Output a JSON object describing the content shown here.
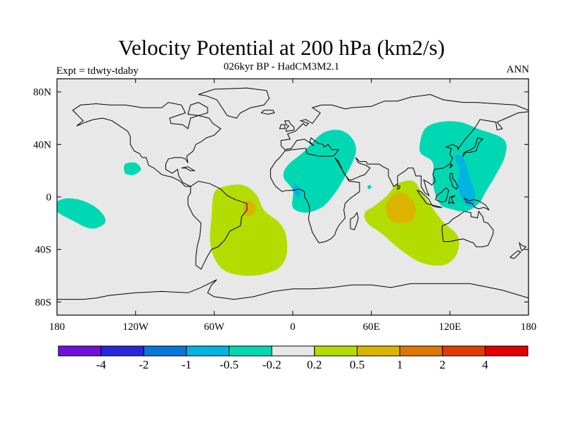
{
  "chart_data": {
    "type": "contour-map",
    "title": "Velocity Potential at 200 hPa (km2/s)",
    "subtitle": "026kyr BP - HadCM3M2.1",
    "left_string": "Expt = tdwty-tdaby",
    "right_string": "ANN",
    "x_axis": {
      "range": [
        -180,
        180
      ],
      "ticks": [
        {
          "value": -180,
          "label": "180"
        },
        {
          "value": -120,
          "label": "120W"
        },
        {
          "value": -60,
          "label": "60W"
        },
        {
          "value": 0,
          "label": "0"
        },
        {
          "value": 60,
          "label": "60E"
        },
        {
          "value": 120,
          "label": "120E"
        },
        {
          "value": 180,
          "label": "180"
        }
      ]
    },
    "y_axis": {
      "range": [
        -90,
        90
      ],
      "ticks": [
        {
          "value": 80,
          "label": "80N"
        },
        {
          "value": 40,
          "label": "40N"
        },
        {
          "value": 0,
          "label": "0"
        },
        {
          "value": -40,
          "label": "40S"
        },
        {
          "value": -80,
          "label": "80S"
        }
      ]
    },
    "levels": [
      "-4",
      "-2",
      "-1",
      "-0.5",
      "-0.2",
      "0.2",
      "0.5",
      "1",
      "2",
      "4"
    ],
    "colors": [
      "#7010d8",
      "#2828d8",
      "#0878d8",
      "#00b4e0",
      "#00d8b4",
      "#e8e8e8",
      "#b4dc00",
      "#dcb400",
      "#dc7800",
      "#e03c00",
      "#e00000"
    ],
    "background_color": "#e8e8e8",
    "regions": [
      {
        "name": "north-africa-middle-east",
        "class": 4,
        "points": [
          [
            0,
            5
          ],
          [
            -7,
            15
          ],
          [
            -4,
            24
          ],
          [
            8,
            34
          ],
          [
            22,
            48
          ],
          [
            35,
            51
          ],
          [
            45,
            45
          ],
          [
            48,
            33
          ],
          [
            38,
            12
          ],
          [
            30,
            0
          ],
          [
            22,
            -8
          ],
          [
            10,
            -12
          ],
          [
            0,
            -8
          ]
        ]
      },
      {
        "name": "west-africa-core",
        "class": 3,
        "points": [
          [
            1,
            10
          ],
          [
            4,
            8
          ],
          [
            6,
            3
          ],
          [
            4,
            0
          ],
          [
            1,
            3
          ]
        ]
      },
      {
        "name": "asia-pacific",
        "class": 4,
        "points": [
          [
            97,
            40
          ],
          [
            101,
            52
          ],
          [
            112,
            57
          ],
          [
            128,
            57
          ],
          [
            141,
            52
          ],
          [
            161,
            44
          ],
          [
            162,
            31
          ],
          [
            154,
            15
          ],
          [
            148,
            5
          ],
          [
            142,
            -5
          ],
          [
            132,
            -11
          ],
          [
            120,
            -9
          ],
          [
            112,
            -5
          ],
          [
            107,
            10
          ],
          [
            107,
            26
          ],
          [
            98,
            33
          ]
        ]
      },
      {
        "name": "maritime-continent-core",
        "class": 3,
        "points": [
          [
            124,
            31
          ],
          [
            127,
            21
          ],
          [
            126,
            10
          ],
          [
            128,
            2
          ],
          [
            132,
            -6
          ],
          [
            138,
            -6
          ],
          [
            139,
            3
          ],
          [
            136,
            12
          ],
          [
            132,
            25
          ],
          [
            129,
            31
          ]
        ]
      },
      {
        "name": "central-pacific",
        "class": 4,
        "points": [
          [
            -180,
            -4
          ],
          [
            -172,
            -1
          ],
          [
            -160,
            -3
          ],
          [
            -149,
            -9
          ],
          [
            -143,
            -17
          ],
          [
            -146,
            -22
          ],
          [
            -155,
            -24
          ],
          [
            -168,
            -18
          ],
          [
            -180,
            -11
          ]
        ]
      },
      {
        "name": "east-pacific-small",
        "class": 4,
        "points": [
          [
            -128,
            25
          ],
          [
            -120,
            26
          ],
          [
            -116,
            21
          ],
          [
            -121,
            17
          ],
          [
            -128,
            18
          ]
        ]
      },
      {
        "name": "indian-ocean-small",
        "class": 4,
        "points": [
          [
            57,
            8
          ],
          [
            59,
            9
          ],
          [
            60,
            7
          ],
          [
            58,
            6
          ]
        ]
      },
      {
        "name": "south-america",
        "class": 6,
        "points": [
          [
            -60,
            3
          ],
          [
            -52,
            8
          ],
          [
            -38,
            9
          ],
          [
            -28,
            2
          ],
          [
            -22,
            -10
          ],
          [
            -10,
            -20
          ],
          [
            -5,
            -30
          ],
          [
            -5,
            -45
          ],
          [
            -12,
            -55
          ],
          [
            -30,
            -60
          ],
          [
            -48,
            -58
          ],
          [
            -58,
            -50
          ],
          [
            -63,
            -35
          ],
          [
            -62,
            -15
          ]
        ]
      },
      {
        "name": "brazil-core",
        "class": 7,
        "points": [
          [
            -37,
            -4
          ],
          [
            -33,
            -3
          ],
          [
            -28,
            -8
          ],
          [
            -31,
            -14
          ],
          [
            -36,
            -14
          ],
          [
            -38,
            -9
          ]
        ]
      },
      {
        "name": "indian-ocean",
        "class": 6,
        "points": [
          [
            72,
            1
          ],
          [
            80,
            10
          ],
          [
            92,
            12
          ],
          [
            100,
            1
          ],
          [
            114,
            -18
          ],
          [
            126,
            -30
          ],
          [
            125,
            -44
          ],
          [
            115,
            -52
          ],
          [
            98,
            -50
          ],
          [
            82,
            -40
          ],
          [
            68,
            -28
          ],
          [
            57,
            -20
          ],
          [
            55,
            -12
          ],
          [
            62,
            -7
          ]
        ]
      },
      {
        "name": "indian-ocean-core",
        "class": 7,
        "points": [
          [
            71,
            -8
          ],
          [
            76,
            1
          ],
          [
            84,
            3
          ],
          [
            91,
            -2
          ],
          [
            94,
            -10
          ],
          [
            91,
            -18
          ],
          [
            83,
            -20
          ],
          [
            74,
            -17
          ]
        ]
      }
    ]
  }
}
